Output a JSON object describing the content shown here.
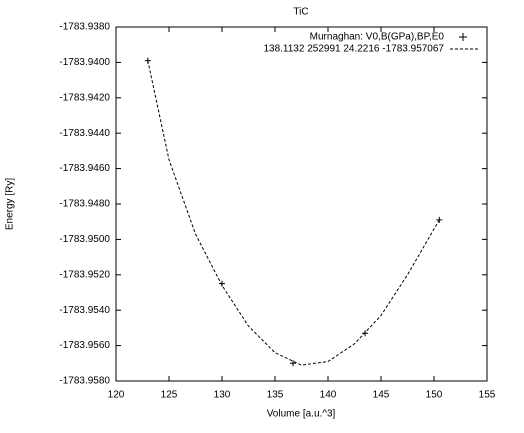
{
  "chart_data": {
    "type": "line",
    "title": "TiC",
    "x_label": "Volume [a.u.^3]",
    "y_label": "Energy [Ry]",
    "xlim": [
      120,
      155
    ],
    "xticks": [
      120,
      125,
      130,
      135,
      140,
      145,
      150,
      155
    ],
    "ylim": [
      -1783.958,
      -1783.938
    ],
    "yticks": [
      {
        "value": -1783.938,
        "label": "-1783.9380"
      },
      {
        "value": -1783.94,
        "label": "-1783.9400"
      },
      {
        "value": -1783.942,
        "label": "-1783.9420"
      },
      {
        "value": -1783.944,
        "label": "-1783.9440"
      },
      {
        "value": -1783.946,
        "label": "-1783.9460"
      },
      {
        "value": -1783.948,
        "label": "-1783.9480"
      },
      {
        "value": -1783.95,
        "label": "-1783.9500"
      },
      {
        "value": -1783.952,
        "label": "-1783.9520"
      },
      {
        "value": -1783.954,
        "label": "-1783.9540"
      },
      {
        "value": -1783.956,
        "label": "-1783.9560"
      },
      {
        "value": -1783.958,
        "label": "-1783.9580"
      }
    ],
    "legend": "top-right",
    "series": [
      {
        "name": "Murnaghan: V0,B(GPa),BP,E0",
        "style": "points",
        "color": "#000000",
        "x": [
          123.0,
          130.0,
          136.7,
          143.5,
          150.5
        ],
        "values": [
          -1783.9399,
          -1783.9525,
          -1783.957,
          -1783.9553,
          -1783.9489
        ]
      },
      {
        "name": "138.1132 252991 24.2216 -1783.957067",
        "style": "dashed",
        "color": "#000000",
        "x": [
          123,
          125,
          127.5,
          130,
          132.5,
          135,
          137.5,
          140,
          142.5,
          145,
          147.5,
          150.5
        ],
        "values": [
          -1783.9399,
          -1783.9455,
          -1783.9497,
          -1783.9526,
          -1783.9549,
          -1783.9564,
          -1783.9571,
          -1783.9569,
          -1783.9559,
          -1783.9543,
          -1783.952,
          -1783.9489
        ]
      }
    ]
  }
}
